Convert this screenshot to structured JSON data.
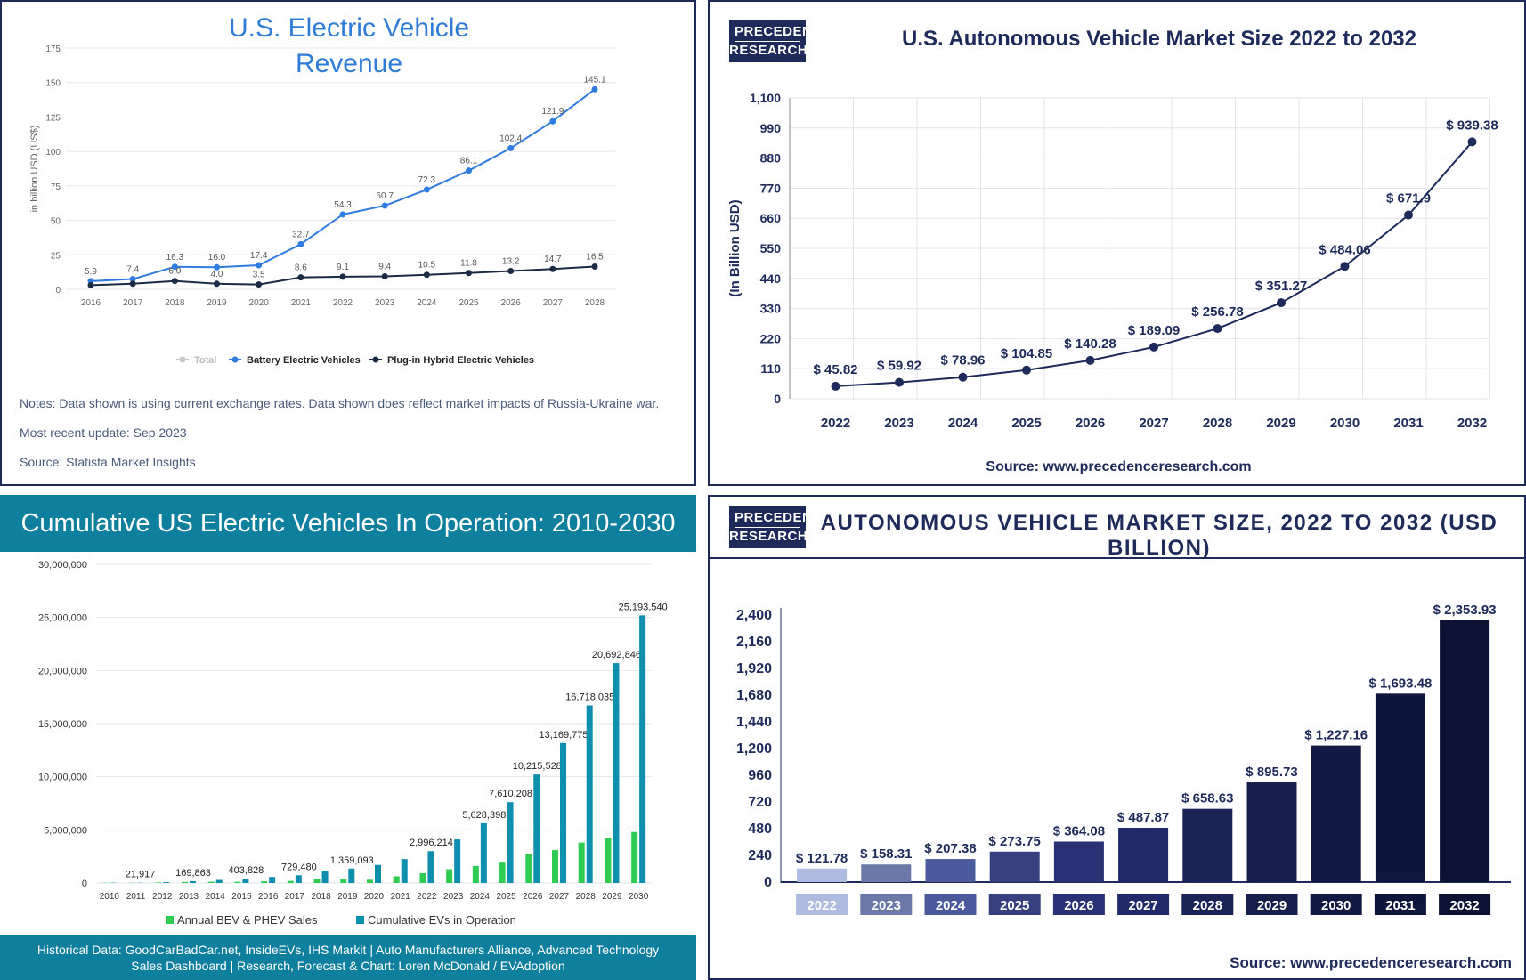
{
  "panel1": {
    "title_line1": "U.S. Electric Vehicle",
    "title_line2": "Revenue",
    "ylabel": "in billion USD (US$)",
    "legend": [
      "Total",
      "Battery Electric Vehicles",
      "Plug-in Hybrid Electric Vehicles"
    ],
    "notes": "Notes: Data shown is using current exchange rates. Data shown does reflect market impacts of Russia-Ukraine war.",
    "update": "Most recent update: Sep 2023",
    "source": "Source: Statista Market Insights",
    "colors": {
      "bev": "#2f7be0",
      "phev": "#1b2a44",
      "total": "#c8c8c8",
      "grid": "#e6e6e6"
    }
  },
  "panel2": {
    "logo_line1": "PRECEDENCE",
    "logo_line2": "RESEARCH",
    "title": "U.S. Autonomous Vehicle Market Size 2022 to 2032",
    "ylabel": "(In Billion USD)",
    "source": "Source: www.precedenceresearch.com",
    "colors": {
      "line": "#1d2a5a"
    }
  },
  "panel3": {
    "title": "Cumulative US Electric Vehicles In Operation: 2010-2030",
    "legend": [
      "Annual BEV & PHEV Sales",
      "Cumulative EVs in Operation"
    ],
    "footer_line1": "Historical Data: GoodCarBadCar.net, InsideEVs, IHS Markit | Auto Manufacturers Alliance, Advanced Technology",
    "footer_line2": "Sales Dashboard | Research, Forecast & Chart: Loren McDonald / EVAdoption",
    "colors": {
      "annual": "#2ecc52",
      "cumulative": "#0f8fae",
      "band": "#0f7f9e"
    }
  },
  "panel4": {
    "logo_line1": "PRECEDENCE",
    "logo_line2": "RESEARCH",
    "title": "AUTONOMOUS VEHICLE MARKET SIZE, 2022 TO 2032 (USD BILLION)",
    "source": "Source: www.precedenceresearch.com"
  },
  "chart_data": [
    {
      "type": "line",
      "title": "U.S. Electric Vehicle Revenue",
      "ylabel": "in billion USD (US$)",
      "x": [
        "2016",
        "2017",
        "2018",
        "2019",
        "2020",
        "2021",
        "2022",
        "2023",
        "2024",
        "2025",
        "2026",
        "2027",
        "2028"
      ],
      "ylim": [
        0,
        175
      ],
      "yticks": [
        0,
        25,
        50,
        75,
        100,
        125,
        150,
        175
      ],
      "grid": true,
      "legend_position": "bottom",
      "series": [
        {
          "name": "Battery Electric Vehicles",
          "values": [
            5.9,
            7.4,
            16.3,
            16.0,
            17.4,
            32.7,
            54.3,
            60.7,
            72.3,
            86.1,
            102.4,
            121.9,
            145.1
          ]
        },
        {
          "name": "Plug-in Hybrid Electric Vehicles",
          "values": [
            3.0,
            4.0,
            6.0,
            4.0,
            3.5,
            8.6,
            9.1,
            9.4,
            10.5,
            11.8,
            13.2,
            14.7,
            16.5
          ]
        }
      ],
      "labels_bev": [
        "5.9",
        "7.4",
        "16.3",
        "16.0",
        "17.4",
        "32.7",
        "54.3",
        "60.7",
        "72.3",
        "86.1",
        "102.4",
        "121.9",
        "145.1"
      ],
      "labels_phev": [
        "",
        "",
        "6.0",
        "4.0",
        "3.5",
        "8.6",
        "9.1",
        "9.4",
        "10.5",
        "11.8",
        "13.2",
        "14.7",
        "16.5"
      ]
    },
    {
      "type": "line",
      "title": "U.S. Autonomous Vehicle Market Size 2022 to 2032",
      "ylabel": "(In Billion USD)",
      "x": [
        "2022",
        "2023",
        "2024",
        "2025",
        "2026",
        "2027",
        "2028",
        "2029",
        "2030",
        "2031",
        "2032"
      ],
      "ylim": [
        0,
        1100
      ],
      "yticks": [
        0,
        110,
        220,
        330,
        440,
        550,
        660,
        770,
        880,
        990,
        1100
      ],
      "ytick_labels": [
        "0",
        "110",
        "220",
        "330",
        "440",
        "550",
        "660",
        "770",
        "880",
        "990",
        "1,100"
      ],
      "grid": true,
      "series": [
        {
          "values": [
            45.82,
            59.92,
            78.96,
            104.85,
            140.28,
            189.09,
            256.78,
            351.27,
            484.06,
            671.9,
            939.38
          ]
        }
      ],
      "data_labels": [
        "$ 45.82",
        "$ 59.92",
        "$ 78.96",
        "$ 104.85",
        "$ 140.28",
        "$ 189.09",
        "$ 256.78",
        "$ 351.27",
        "$ 484.06",
        "$ 671.9",
        "$ 939.38"
      ]
    },
    {
      "type": "bar",
      "title": "Cumulative US Electric Vehicles In Operation: 2010-2030",
      "categories": [
        "2010",
        "2011",
        "2012",
        "2013",
        "2014",
        "2015",
        "2016",
        "2017",
        "2018",
        "2019",
        "2020",
        "2021",
        "2022",
        "2023",
        "2024",
        "2025",
        "2026",
        "2027",
        "2028",
        "2029",
        "2030"
      ],
      "ylim": [
        0,
        30000000
      ],
      "yticks": [
        0,
        5000000,
        10000000,
        15000000,
        20000000,
        25000000,
        30000000
      ],
      "ytick_labels": [
        "0",
        "5,000,000",
        "10,000,000",
        "15,000,000",
        "20,000,000",
        "25,000,000",
        "30,000,000"
      ],
      "legend_position": "bottom",
      "series": [
        {
          "name": "Annual BEV & PHEV Sales",
          "values": [
            20000,
            17000,
            52000,
            97000,
            119000,
            115000,
            160000,
            195000,
            360000,
            330000,
            308000,
            630000,
            920000,
            1300000,
            1600000,
            2000000,
            2700000,
            3100000,
            3800000,
            4200000,
            4800000
          ]
        },
        {
          "name": "Cumulative EVs in Operation",
          "values": [
            30000,
            21917,
            75000,
            169863,
            290000,
            403828,
            570000,
            729480,
            1100000,
            1359093,
            1700000,
            2250000,
            2996214,
            4100000,
            5628398,
            7610208,
            10215528,
            13169775,
            16718035,
            20692846,
            25193540
          ]
        }
      ],
      "labels_cumulative": [
        "",
        "21,917",
        "",
        "169,863",
        "",
        "403,828",
        "",
        "729,480",
        "",
        "1,359,093",
        "",
        "",
        "2,996,214",
        "",
        "5,628,398",
        "7,610,208",
        "10,215,528",
        "13,169,775",
        "16,718,035",
        "20,692,846",
        "25,193,540"
      ]
    },
    {
      "type": "bar",
      "title": "AUTONOMOUS VEHICLE MARKET SIZE, 2022 TO 2032 (USD BILLION)",
      "categories": [
        "2022",
        "2023",
        "2024",
        "2025",
        "2026",
        "2027",
        "2028",
        "2029",
        "2030",
        "2031",
        "2032"
      ],
      "ylim": [
        0,
        2400
      ],
      "yticks": [
        0,
        240,
        480,
        720,
        960,
        1200,
        1440,
        1680,
        1920,
        2160,
        2400
      ],
      "ytick_labels": [
        "0",
        "240",
        "480",
        "720",
        "960",
        "1,200",
        "1,440",
        "1,680",
        "1,920",
        "2,160",
        "2,400"
      ],
      "values": [
        121.78,
        158.31,
        207.38,
        273.75,
        364.08,
        487.87,
        658.63,
        895.73,
        1227.16,
        1693.48,
        2353.93
      ],
      "data_labels": [
        "$ 121.78",
        "$ 158.31",
        "$ 207.38",
        "$ 273.75",
        "$ 364.08",
        "$ 487.87",
        "$ 658.63",
        "$ 895.73",
        "$ 1,227.16",
        "$ 1,693.48",
        "$ 2,353.93"
      ],
      "colors": [
        "#aebbe0",
        "#6a79a8",
        "#4a5a9a",
        "#36407e",
        "#2a3276",
        "#202a68",
        "#1a2456",
        "#161f4c",
        "#121a44",
        "#0f163c",
        "#0c1234"
      ]
    }
  ]
}
